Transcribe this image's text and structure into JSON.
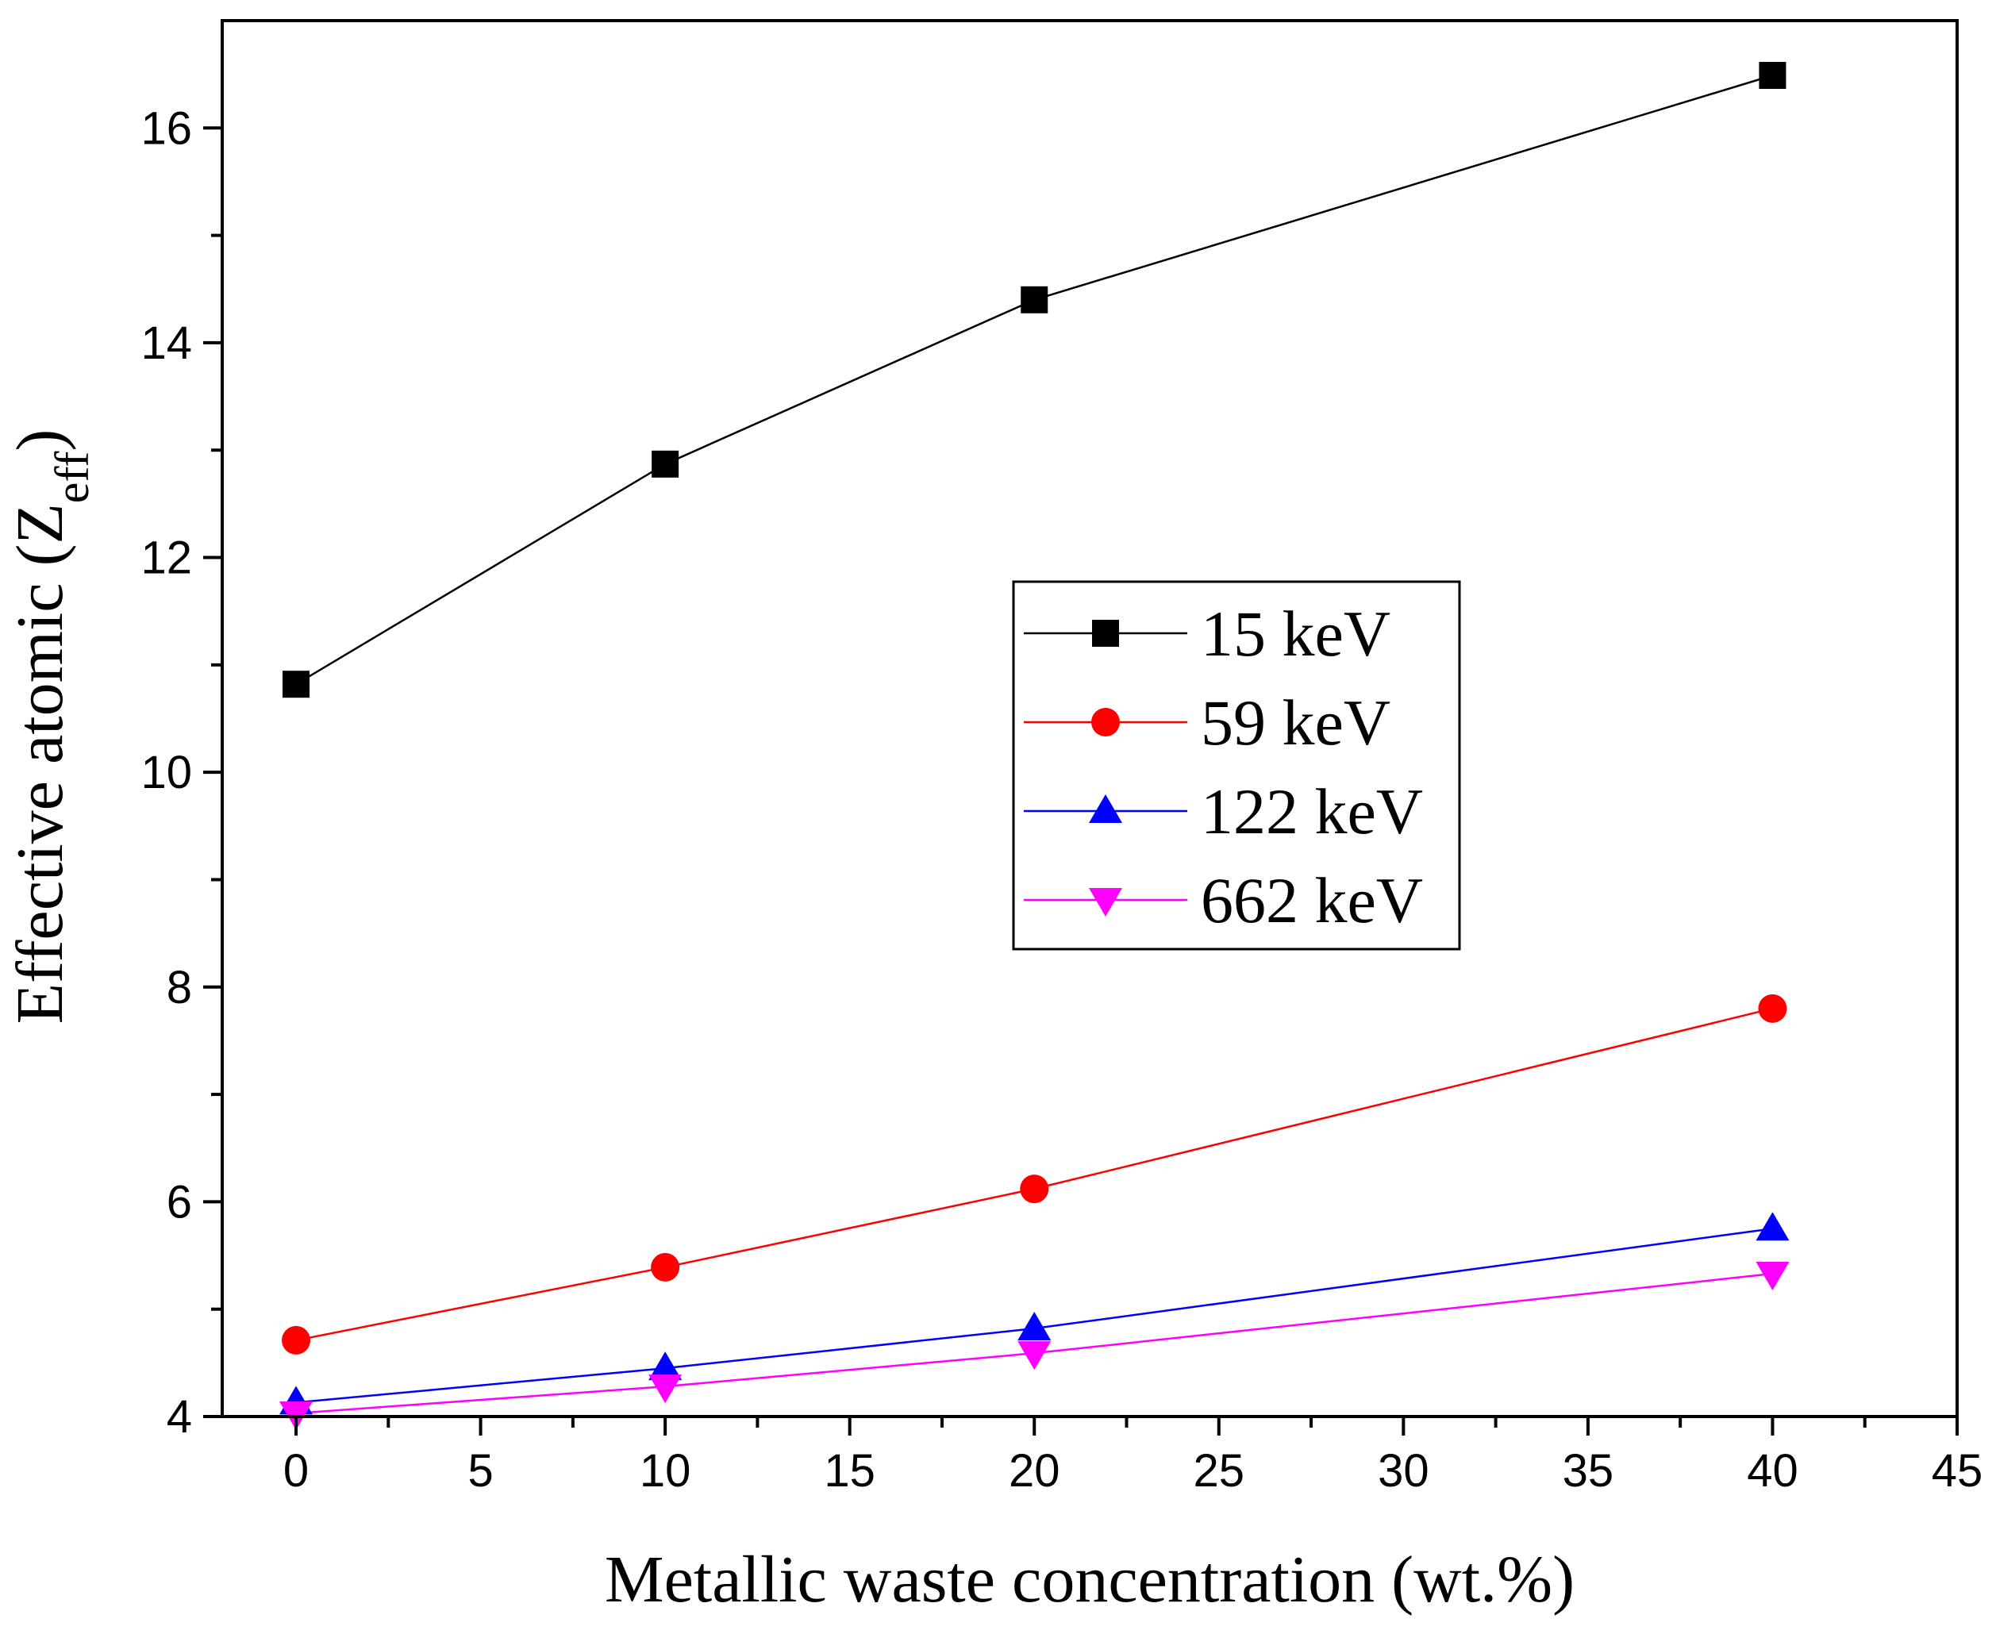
{
  "chart_data": {
    "type": "line",
    "title": "",
    "xlabel": "Metallic waste concentration (wt.%)",
    "ylabel": {
      "main": "Effective atomic (Z",
      "sub": "eff",
      "close": ")"
    },
    "xlim": [
      -2,
      45
    ],
    "ylim": [
      4,
      17
    ],
    "xticks": [
      "0",
      "5",
      "10",
      "15",
      "20",
      "25",
      "30",
      "35",
      "40",
      "45"
    ],
    "yticks": [
      "4",
      "6",
      "8",
      "10",
      "12",
      "14",
      "16"
    ],
    "x": [
      0,
      10,
      20,
      40
    ],
    "legend_position": "center-right",
    "series": [
      {
        "name": "15 keV",
        "marker": "square",
        "color": "#000000",
        "values": [
          10.82,
          12.87,
          14.4,
          16.49
        ]
      },
      {
        "name": "59 keV",
        "marker": "circle",
        "color": "#ff0000",
        "values": [
          4.71,
          5.39,
          6.12,
          7.8
        ]
      },
      {
        "name": "122 keV",
        "marker": "triangle-up",
        "color": "#0000ff",
        "values": [
          4.13,
          4.45,
          4.82,
          5.75
        ]
      },
      {
        "name": "662 keV",
        "marker": "triangle-down",
        "color": "#ff00ff",
        "values": [
          4.03,
          4.28,
          4.59,
          5.33
        ]
      }
    ]
  }
}
